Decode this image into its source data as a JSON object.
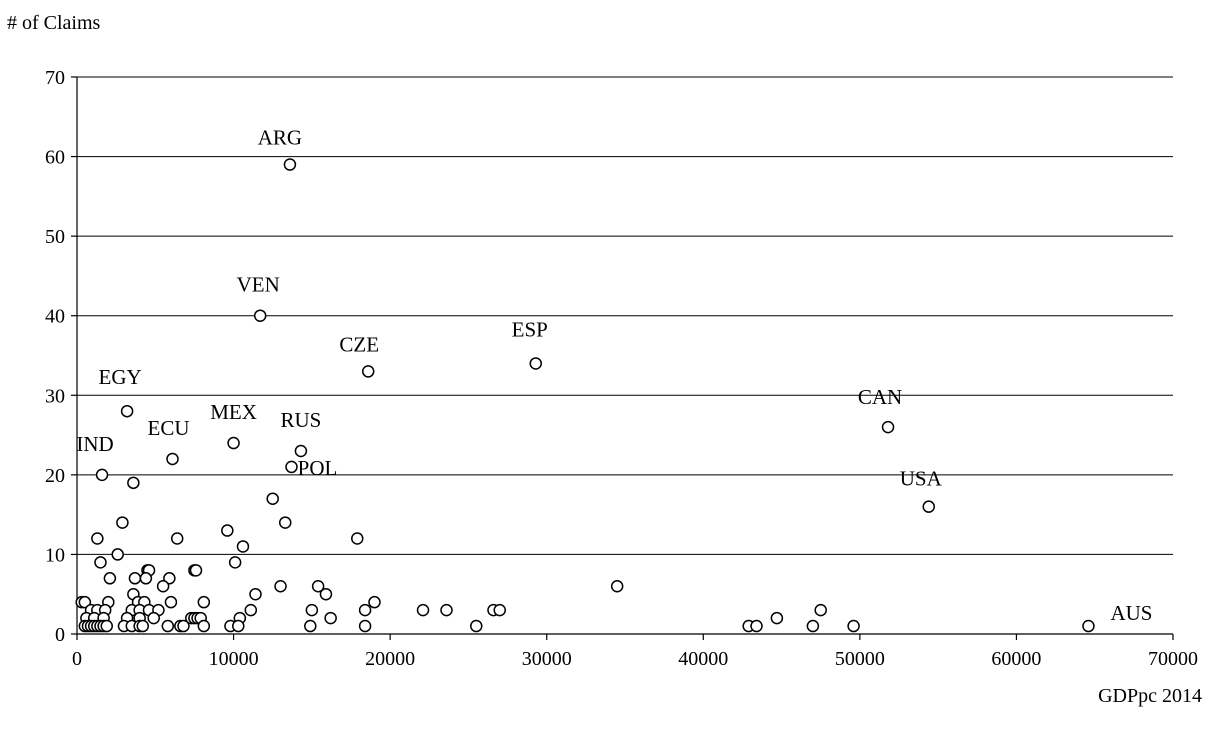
{
  "chart_data": {
    "type": "scatter",
    "title": "",
    "ylabel": "# of Claims",
    "xlabel": "GDPpc 2014",
    "xlim": [
      0,
      70000
    ],
    "ylim": [
      0,
      70
    ],
    "xticks": [
      0,
      10000,
      20000,
      30000,
      40000,
      50000,
      60000,
      70000
    ],
    "yticks": [
      0,
      10,
      20,
      30,
      40,
      50,
      60,
      70
    ],
    "grid": "horizontal",
    "marker": "open-circle",
    "annotations": [
      {
        "label": "ARG",
        "x": 13600,
        "y": 59
      },
      {
        "label": "VEN",
        "x": 11700,
        "y": 40
      },
      {
        "label": "ESP",
        "x": 29300,
        "y": 34
      },
      {
        "label": "CZE",
        "x": 18600,
        "y": 33
      },
      {
        "label": "EGY",
        "x": 3200,
        "y": 28
      },
      {
        "label": "CAN",
        "x": 51800,
        "y": 26
      },
      {
        "label": "MEX",
        "x": 10000,
        "y": 24
      },
      {
        "label": "RUS",
        "x": 14300,
        "y": 23
      },
      {
        "label": "ECU",
        "x": 6100,
        "y": 22
      },
      {
        "label": "POL",
        "x": 13700,
        "y": 21
      },
      {
        "label": "IND",
        "x": 1600,
        "y": 20
      },
      {
        "label": "USA",
        "x": 54400,
        "y": 16
      },
      {
        "label": "AUS",
        "x": 64600,
        "y": 1
      }
    ],
    "points": [
      {
        "x": 13600,
        "y": 59
      },
      {
        "x": 11700,
        "y": 40
      },
      {
        "x": 29300,
        "y": 34
      },
      {
        "x": 18600,
        "y": 33
      },
      {
        "x": 3200,
        "y": 28
      },
      {
        "x": 51800,
        "y": 26
      },
      {
        "x": 10000,
        "y": 24
      },
      {
        "x": 14300,
        "y": 23
      },
      {
        "x": 6100,
        "y": 22
      },
      {
        "x": 13700,
        "y": 21
      },
      {
        "x": 1600,
        "y": 20
      },
      {
        "x": 3600,
        "y": 19
      },
      {
        "x": 12500,
        "y": 17
      },
      {
        "x": 54400,
        "y": 16
      },
      {
        "x": 2900,
        "y": 14
      },
      {
        "x": 13300,
        "y": 14
      },
      {
        "x": 9600,
        "y": 13
      },
      {
        "x": 1300,
        "y": 12
      },
      {
        "x": 6400,
        "y": 12
      },
      {
        "x": 17900,
        "y": 12
      },
      {
        "x": 10600,
        "y": 11
      },
      {
        "x": 2600,
        "y": 10
      },
      {
        "x": 1500,
        "y": 9
      },
      {
        "x": 10100,
        "y": 9
      },
      {
        "x": 4500,
        "y": 8
      },
      {
        "x": 4600,
        "y": 8
      },
      {
        "x": 7500,
        "y": 8
      },
      {
        "x": 7600,
        "y": 8
      },
      {
        "x": 2100,
        "y": 7
      },
      {
        "x": 3700,
        "y": 7
      },
      {
        "x": 4400,
        "y": 7
      },
      {
        "x": 5900,
        "y": 7
      },
      {
        "x": 5500,
        "y": 6
      },
      {
        "x": 13000,
        "y": 6
      },
      {
        "x": 15400,
        "y": 6
      },
      {
        "x": 34500,
        "y": 6
      },
      {
        "x": 3600,
        "y": 5
      },
      {
        "x": 11400,
        "y": 5
      },
      {
        "x": 15900,
        "y": 5
      },
      {
        "x": 300,
        "y": 4
      },
      {
        "x": 500,
        "y": 4
      },
      {
        "x": 2000,
        "y": 4
      },
      {
        "x": 3900,
        "y": 4
      },
      {
        "x": 4300,
        "y": 4
      },
      {
        "x": 6000,
        "y": 4
      },
      {
        "x": 8100,
        "y": 4
      },
      {
        "x": 19000,
        "y": 4
      },
      {
        "x": 900,
        "y": 3
      },
      {
        "x": 1300,
        "y": 3
      },
      {
        "x": 1800,
        "y": 3
      },
      {
        "x": 3500,
        "y": 3
      },
      {
        "x": 4000,
        "y": 3
      },
      {
        "x": 4600,
        "y": 3
      },
      {
        "x": 5200,
        "y": 3
      },
      {
        "x": 11100,
        "y": 3
      },
      {
        "x": 15000,
        "y": 3
      },
      {
        "x": 18400,
        "y": 3
      },
      {
        "x": 22100,
        "y": 3
      },
      {
        "x": 23600,
        "y": 3
      },
      {
        "x": 26600,
        "y": 3
      },
      {
        "x": 27000,
        "y": 3
      },
      {
        "x": 47500,
        "y": 3
      },
      {
        "x": 600,
        "y": 2
      },
      {
        "x": 1100,
        "y": 2
      },
      {
        "x": 1700,
        "y": 2
      },
      {
        "x": 3200,
        "y": 2
      },
      {
        "x": 4000,
        "y": 2
      },
      {
        "x": 4900,
        "y": 2
      },
      {
        "x": 7300,
        "y": 2
      },
      {
        "x": 7500,
        "y": 2
      },
      {
        "x": 7700,
        "y": 2
      },
      {
        "x": 7900,
        "y": 2
      },
      {
        "x": 10400,
        "y": 2
      },
      {
        "x": 16200,
        "y": 2
      },
      {
        "x": 44700,
        "y": 2
      },
      {
        "x": 500,
        "y": 1
      },
      {
        "x": 700,
        "y": 1
      },
      {
        "x": 900,
        "y": 1
      },
      {
        "x": 1100,
        "y": 1
      },
      {
        "x": 1300,
        "y": 1
      },
      {
        "x": 1500,
        "y": 1
      },
      {
        "x": 1700,
        "y": 1
      },
      {
        "x": 1900,
        "y": 1
      },
      {
        "x": 3000,
        "y": 1
      },
      {
        "x": 3500,
        "y": 1
      },
      {
        "x": 4000,
        "y": 1
      },
      {
        "x": 4200,
        "y": 1
      },
      {
        "x": 5800,
        "y": 1
      },
      {
        "x": 6600,
        "y": 1
      },
      {
        "x": 6800,
        "y": 1
      },
      {
        "x": 8100,
        "y": 1
      },
      {
        "x": 9800,
        "y": 1
      },
      {
        "x": 10300,
        "y": 1
      },
      {
        "x": 14900,
        "y": 1
      },
      {
        "x": 18400,
        "y": 1
      },
      {
        "x": 25500,
        "y": 1
      },
      {
        "x": 42900,
        "y": 1
      },
      {
        "x": 43400,
        "y": 1
      },
      {
        "x": 47000,
        "y": 1
      },
      {
        "x": 49600,
        "y": 1
      },
      {
        "x": 64600,
        "y": 1
      }
    ]
  }
}
